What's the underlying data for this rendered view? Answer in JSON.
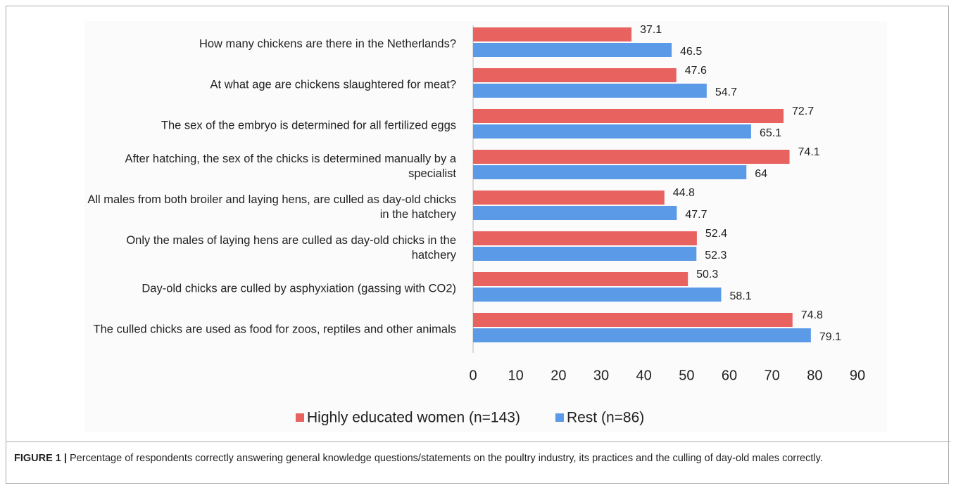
{
  "chart_data": {
    "type": "bar",
    "orientation": "horizontal",
    "categories": [
      "How many chickens are there in the Netherlands?",
      "At what age are chickens slaughtered for meat?",
      "The sex of the embryo is determined for all fertilized eggs",
      "After hatching, the sex of the chicks is determined manually by a specialist",
      "All males from both broiler and laying hens, are culled as day-old chicks in the hatchery",
      "Only the males of laying hens are culled as day-old chicks in the hatchery",
      "Day-old chicks are culled by asphyxiation (gassing with CO2)",
      "The culled chicks are used as food for zoos, reptiles and other animals"
    ],
    "series": [
      {
        "name": "Highly educated women (n=143)",
        "color": "#e8625f",
        "values": [
          37.1,
          47.6,
          72.7,
          74.1,
          44.8,
          52.4,
          50.3,
          74.8
        ]
      },
      {
        "name": "Rest (n=86)",
        "color": "#5b9ae6",
        "values": [
          46.5,
          54.7,
          65.1,
          64,
          47.7,
          52.3,
          58.1,
          79.1
        ]
      }
    ],
    "xlim": [
      0,
      90
    ],
    "xticks": [
      0,
      10,
      20,
      30,
      40,
      50,
      60,
      70,
      80,
      90
    ],
    "legend": "bottom",
    "caption_label": "FIGURE 1 |",
    "caption": "Percentage of respondents correctly answering general knowledge questions/statements on the poultry industry, its practices and the culling of day-old males correctly."
  }
}
